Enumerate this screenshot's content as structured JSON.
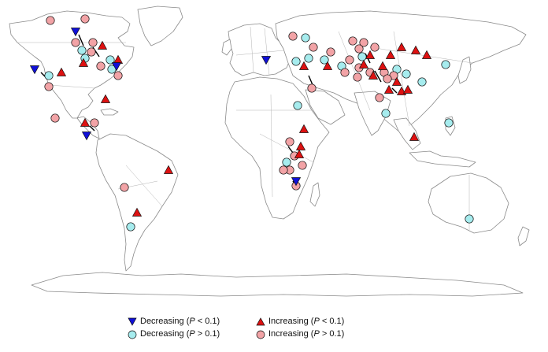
{
  "colors": {
    "decreasing_sig": "#1010d8",
    "decreasing_nonsig": "#a6ecee",
    "increasing_sig": "#dd1111",
    "increasing_nonsig": "#f2a3a6"
  },
  "legend": {
    "items": [
      {
        "key": "decreasing_sig",
        "shape": "triangle-down",
        "label": "Decreasing (",
        "pvar": "P",
        "cond": " < 0.1)"
      },
      {
        "key": "decreasing_nonsig",
        "shape": "circle",
        "label": "Decreasing (",
        "pvar": "P",
        "cond": " > 0.1)"
      },
      {
        "key": "increasing_sig",
        "shape": "triangle-up",
        "label": "Increasing (",
        "pvar": "P",
        "cond": " < 0.1)"
      },
      {
        "key": "increasing_nonsig",
        "shape": "circle",
        "label": "Increasing (",
        "pvar": "P",
        "cond": " > 0.1)"
      }
    ]
  }
}
